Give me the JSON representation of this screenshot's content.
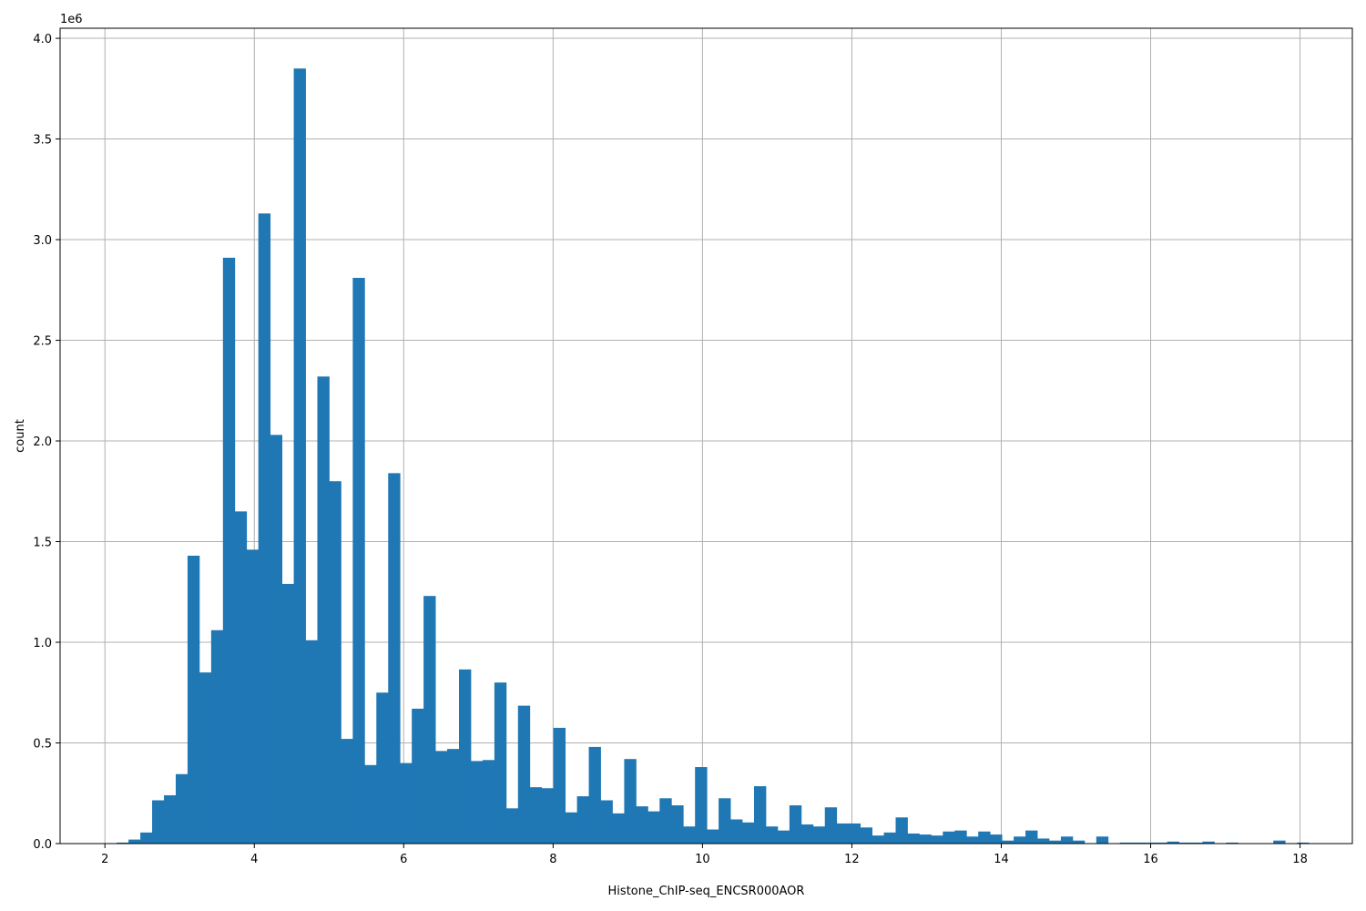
{
  "chart_data": {
    "type": "bar",
    "histogram": true,
    "xlabel": "Histone_ChIP-seq_ENCSR000AOR",
    "ylabel": "count",
    "y_offset_label": "1e6",
    "xlim": [
      1.4,
      18.7
    ],
    "ylim": [
      0,
      4.05
    ],
    "xticks": [
      2,
      4,
      6,
      8,
      10,
      12,
      14,
      16,
      18
    ],
    "xtick_labels": [
      "2",
      "4",
      "6",
      "8",
      "10",
      "12",
      "14",
      "16",
      "18"
    ],
    "yticks": [
      0,
      0.5,
      1.0,
      1.5,
      2.0,
      2.5,
      3.0,
      3.5,
      4.0
    ],
    "ytick_labels": [
      "0.0",
      "0.5",
      "1.0",
      "1.5",
      "2.0",
      "2.5",
      "3.0",
      "3.5",
      "4.0"
    ],
    "grid": true,
    "bar_color": "#1f77b4",
    "bin_start": 2.0,
    "bin_width": 0.158,
    "values": [
      0.0,
      0.005,
      0.02,
      0.055,
      0.215,
      0.24,
      0.345,
      1.43,
      0.85,
      1.06,
      2.91,
      1.65,
      1.46,
      3.13,
      2.03,
      1.29,
      3.85,
      1.01,
      2.32,
      1.8,
      0.52,
      2.81,
      0.39,
      0.75,
      1.84,
      0.4,
      0.67,
      1.23,
      0.46,
      0.47,
      0.865,
      0.41,
      0.415,
      0.8,
      0.175,
      0.685,
      0.28,
      0.275,
      0.575,
      0.155,
      0.235,
      0.48,
      0.215,
      0.15,
      0.42,
      0.185,
      0.16,
      0.225,
      0.19,
      0.085,
      0.38,
      0.07,
      0.225,
      0.12,
      0.105,
      0.285,
      0.085,
      0.065,
      0.19,
      0.095,
      0.085,
      0.18,
      0.1,
      0.1,
      0.08,
      0.04,
      0.055,
      0.13,
      0.05,
      0.045,
      0.04,
      0.06,
      0.065,
      0.035,
      0.06,
      0.045,
      0.015,
      0.035,
      0.065,
      0.025,
      0.015,
      0.035,
      0.015,
      0.0,
      0.035,
      0.0,
      0.005,
      0.005,
      0.005,
      0.005,
      0.01,
      0.005,
      0.005,
      0.01,
      0.0,
      0.005,
      0.0,
      0.0,
      0.0,
      0.015,
      0.0,
      0.005
    ]
  }
}
